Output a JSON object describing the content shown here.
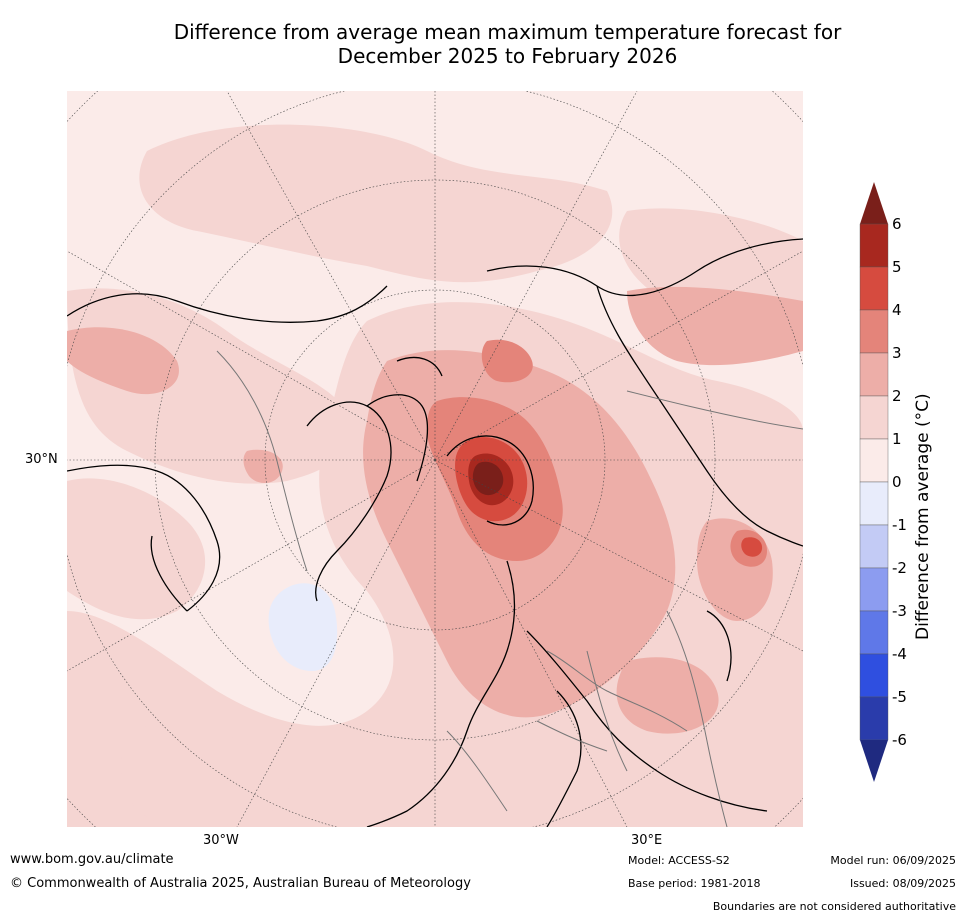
{
  "title": {
    "line1": "Difference from average mean maximum temperature forecast for",
    "line2": "December 2025 to February 2026"
  },
  "map": {
    "graticule_labels": {
      "lat_30n": "30°N",
      "lon_30w": "30°W",
      "lon_30e": "30°E"
    }
  },
  "colorbar": {
    "title": "Difference from average (°C)",
    "ticks": [
      "6",
      "5",
      "4",
      "3",
      "2",
      "1",
      "0",
      "-1",
      "-2",
      "-3",
      "-4",
      "-5",
      "-6"
    ],
    "colors": {
      "over": "#7a1f1a",
      "b5_6": "#a8281f",
      "b4_5": "#d64b3f",
      "b3_4": "#e4847a",
      "b2_3": "#edaea8",
      "b1_2": "#f5d5d2",
      "b0_1": "#fbebe9",
      "bm1_0": "#e8ecfb",
      "bm2_m1": "#c3cbf5",
      "bm3_m2": "#8c9cf0",
      "bm4_m3": "#5f78e8",
      "bm5_m4": "#2f4fe0",
      "bm6_m5": "#2a3cab",
      "under": "#1f2a80"
    }
  },
  "footer": {
    "website": "www.bom.gov.au/climate",
    "copyright": "© Commonwealth of Australia 2025, Australian Bureau of Meteorology",
    "model": "Model: ACCESS-S2",
    "base_period": "Base period: 1981-2018",
    "model_run": "Model run: 06/09/2025",
    "issued": "Issued: 08/09/2025",
    "disclaimer": "Boundaries are not considered authoritative"
  }
}
